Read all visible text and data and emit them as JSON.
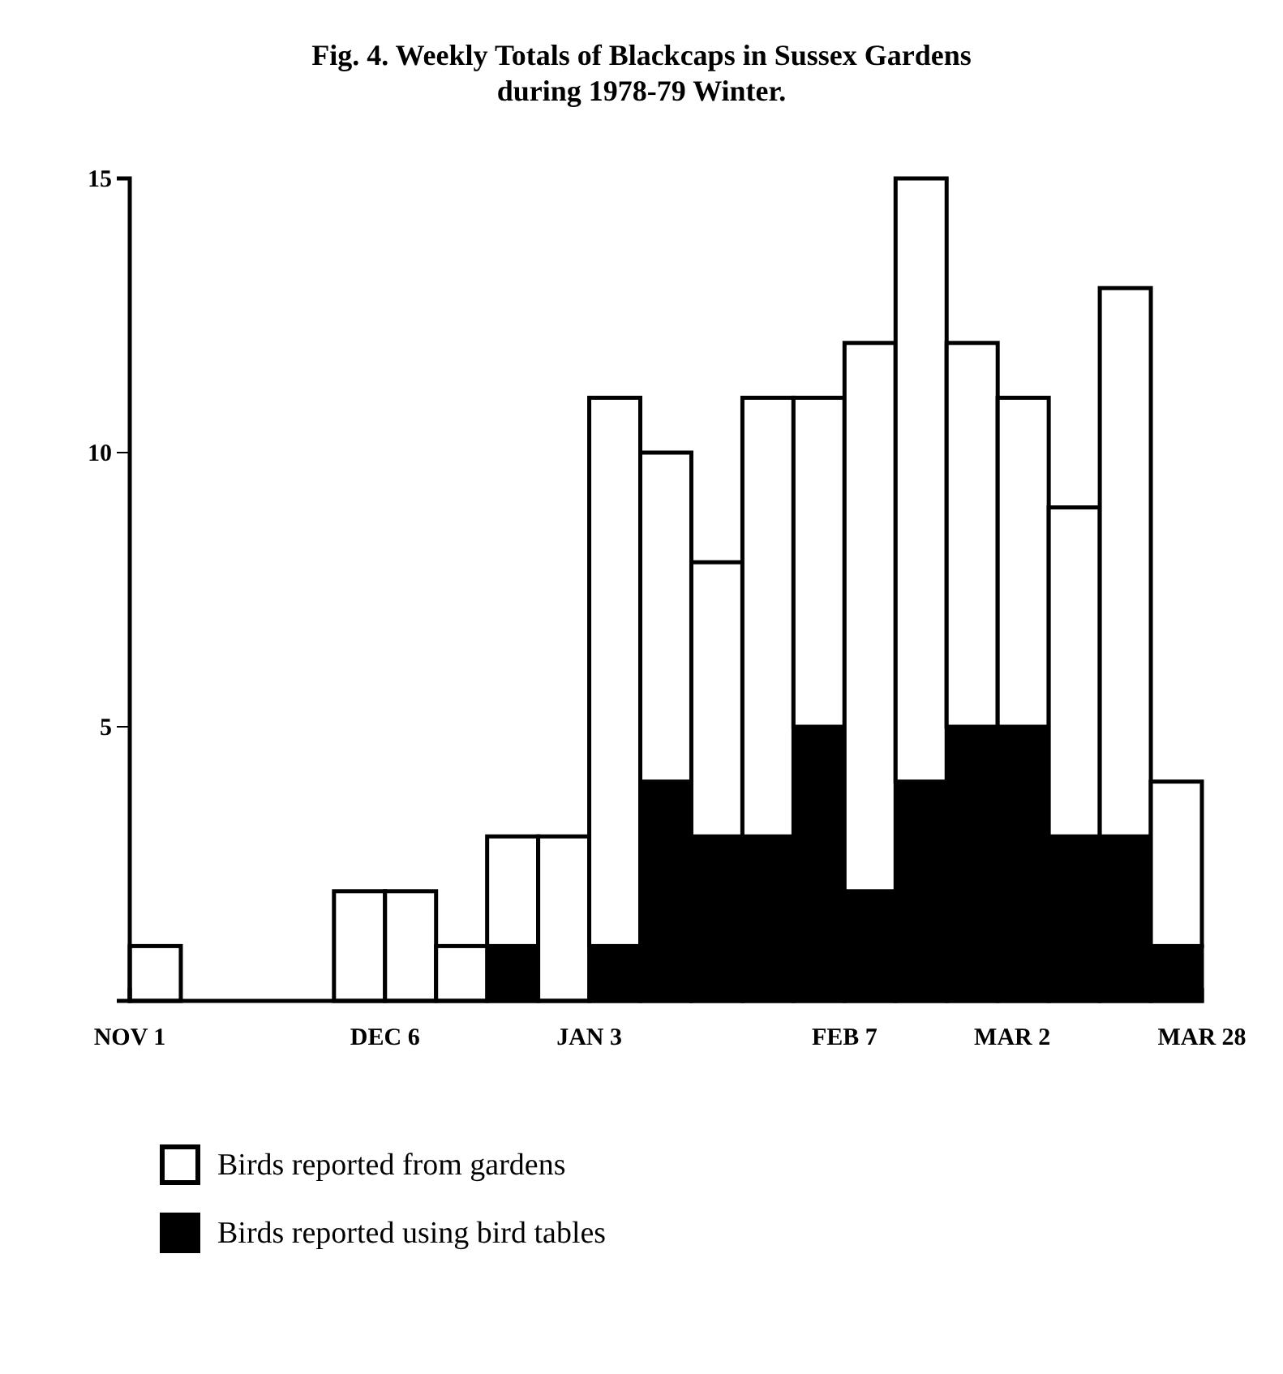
{
  "chart_data": {
    "type": "bar",
    "title": "Fig. 4. Weekly Totals of Blackcaps in Sussex Gardens during 1978-79 Winter.",
    "stacked": true,
    "legend": "bottom left",
    "x": [
      "1978-11-04T12:00",
      "1978-11-11T12:00",
      "1978-11-18T12:00",
      "1978-11-25T12:00",
      "1978-12-02T12:00",
      "1978-12-09T12:00",
      "1978-12-16T12:00",
      "1978-12-23T12:00",
      "1978-12-30T12:00",
      "1979-01-06T12:00",
      "1979-01-13T12:00",
      "1979-01-20T12:00",
      "1979-01-27T12:00",
      "1979-02-03T12:00",
      "1979-02-10T12:00",
      "1979-02-17T12:00",
      "1979-02-24T12:00",
      "1979-03-03T12:00",
      "1979-03-10T12:00",
      "1979-03-17T12:00",
      "1979-03-24T12:00"
    ],
    "xlim": [
      "1978-11-01",
      "1979-03-28"
    ],
    "xticks": [
      {
        "value": "1978-11-01",
        "label": "NOV 1"
      },
      {
        "value": "1978-12-06",
        "label": "DEC 6"
      },
      {
        "value": "1979-01-03",
        "label": "JAN 3"
      },
      {
        "value": "1979-02-07",
        "label": "FEB 7"
      },
      {
        "value": "1979-03-02",
        "label": "MAR 2"
      },
      {
        "value": "1979-03-28",
        "label": "MAR 28"
      }
    ],
    "ylim": [
      0,
      15
    ],
    "yticks": [
      5,
      10,
      15
    ],
    "series": [
      {
        "name": "Birds reported using bird tables",
        "color": "#000000",
        "values": [
          0,
          0,
          0,
          0,
          0,
          0,
          0,
          1,
          0,
          1,
          4,
          3,
          3,
          5,
          2,
          4,
          5,
          5,
          3,
          3,
          1
        ]
      },
      {
        "name": "Birds reported from gardens",
        "color": "#ffffff",
        "values": [
          1,
          0,
          0,
          0,
          2,
          2,
          1,
          2,
          3,
          10,
          6,
          5,
          8,
          6,
          10,
          11,
          7,
          6,
          6,
          10,
          3
        ]
      }
    ]
  }
}
